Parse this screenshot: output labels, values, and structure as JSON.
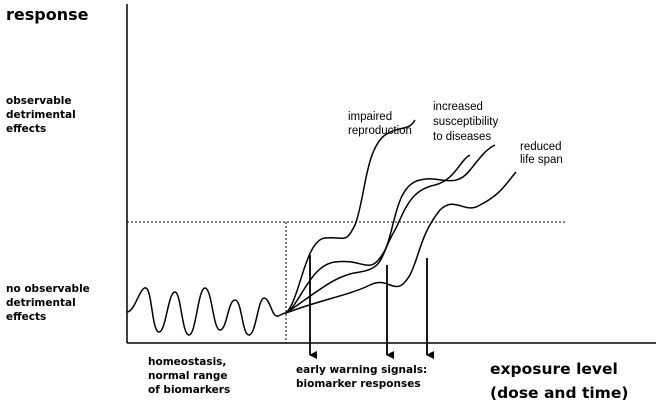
{
  "axis_label_y": "response",
  "y_levels": [
    {
      "lines": [
        "observable",
        "detrimental",
        "effects"
      ]
    },
    {
      "lines": [
        "no observable",
        "detrimental",
        "effects"
      ]
    }
  ],
  "curves": [
    {
      "lines": [
        "impaired",
        "reproduction"
      ]
    },
    {
      "lines": [
        "increased",
        "susceptibility",
        "to diseases"
      ]
    },
    {
      "lines": [
        "reduced",
        "life span"
      ]
    }
  ],
  "x_regions": [
    {
      "lines": [
        "homeostasis,",
        "normal range",
        "of biomarkers"
      ]
    },
    {
      "lines": [
        "early warning signals:",
        "biomarker responses"
      ]
    }
  ],
  "axis_label_x": {
    "lines": [
      "exposure level",
      "(dose and time)"
    ]
  }
}
